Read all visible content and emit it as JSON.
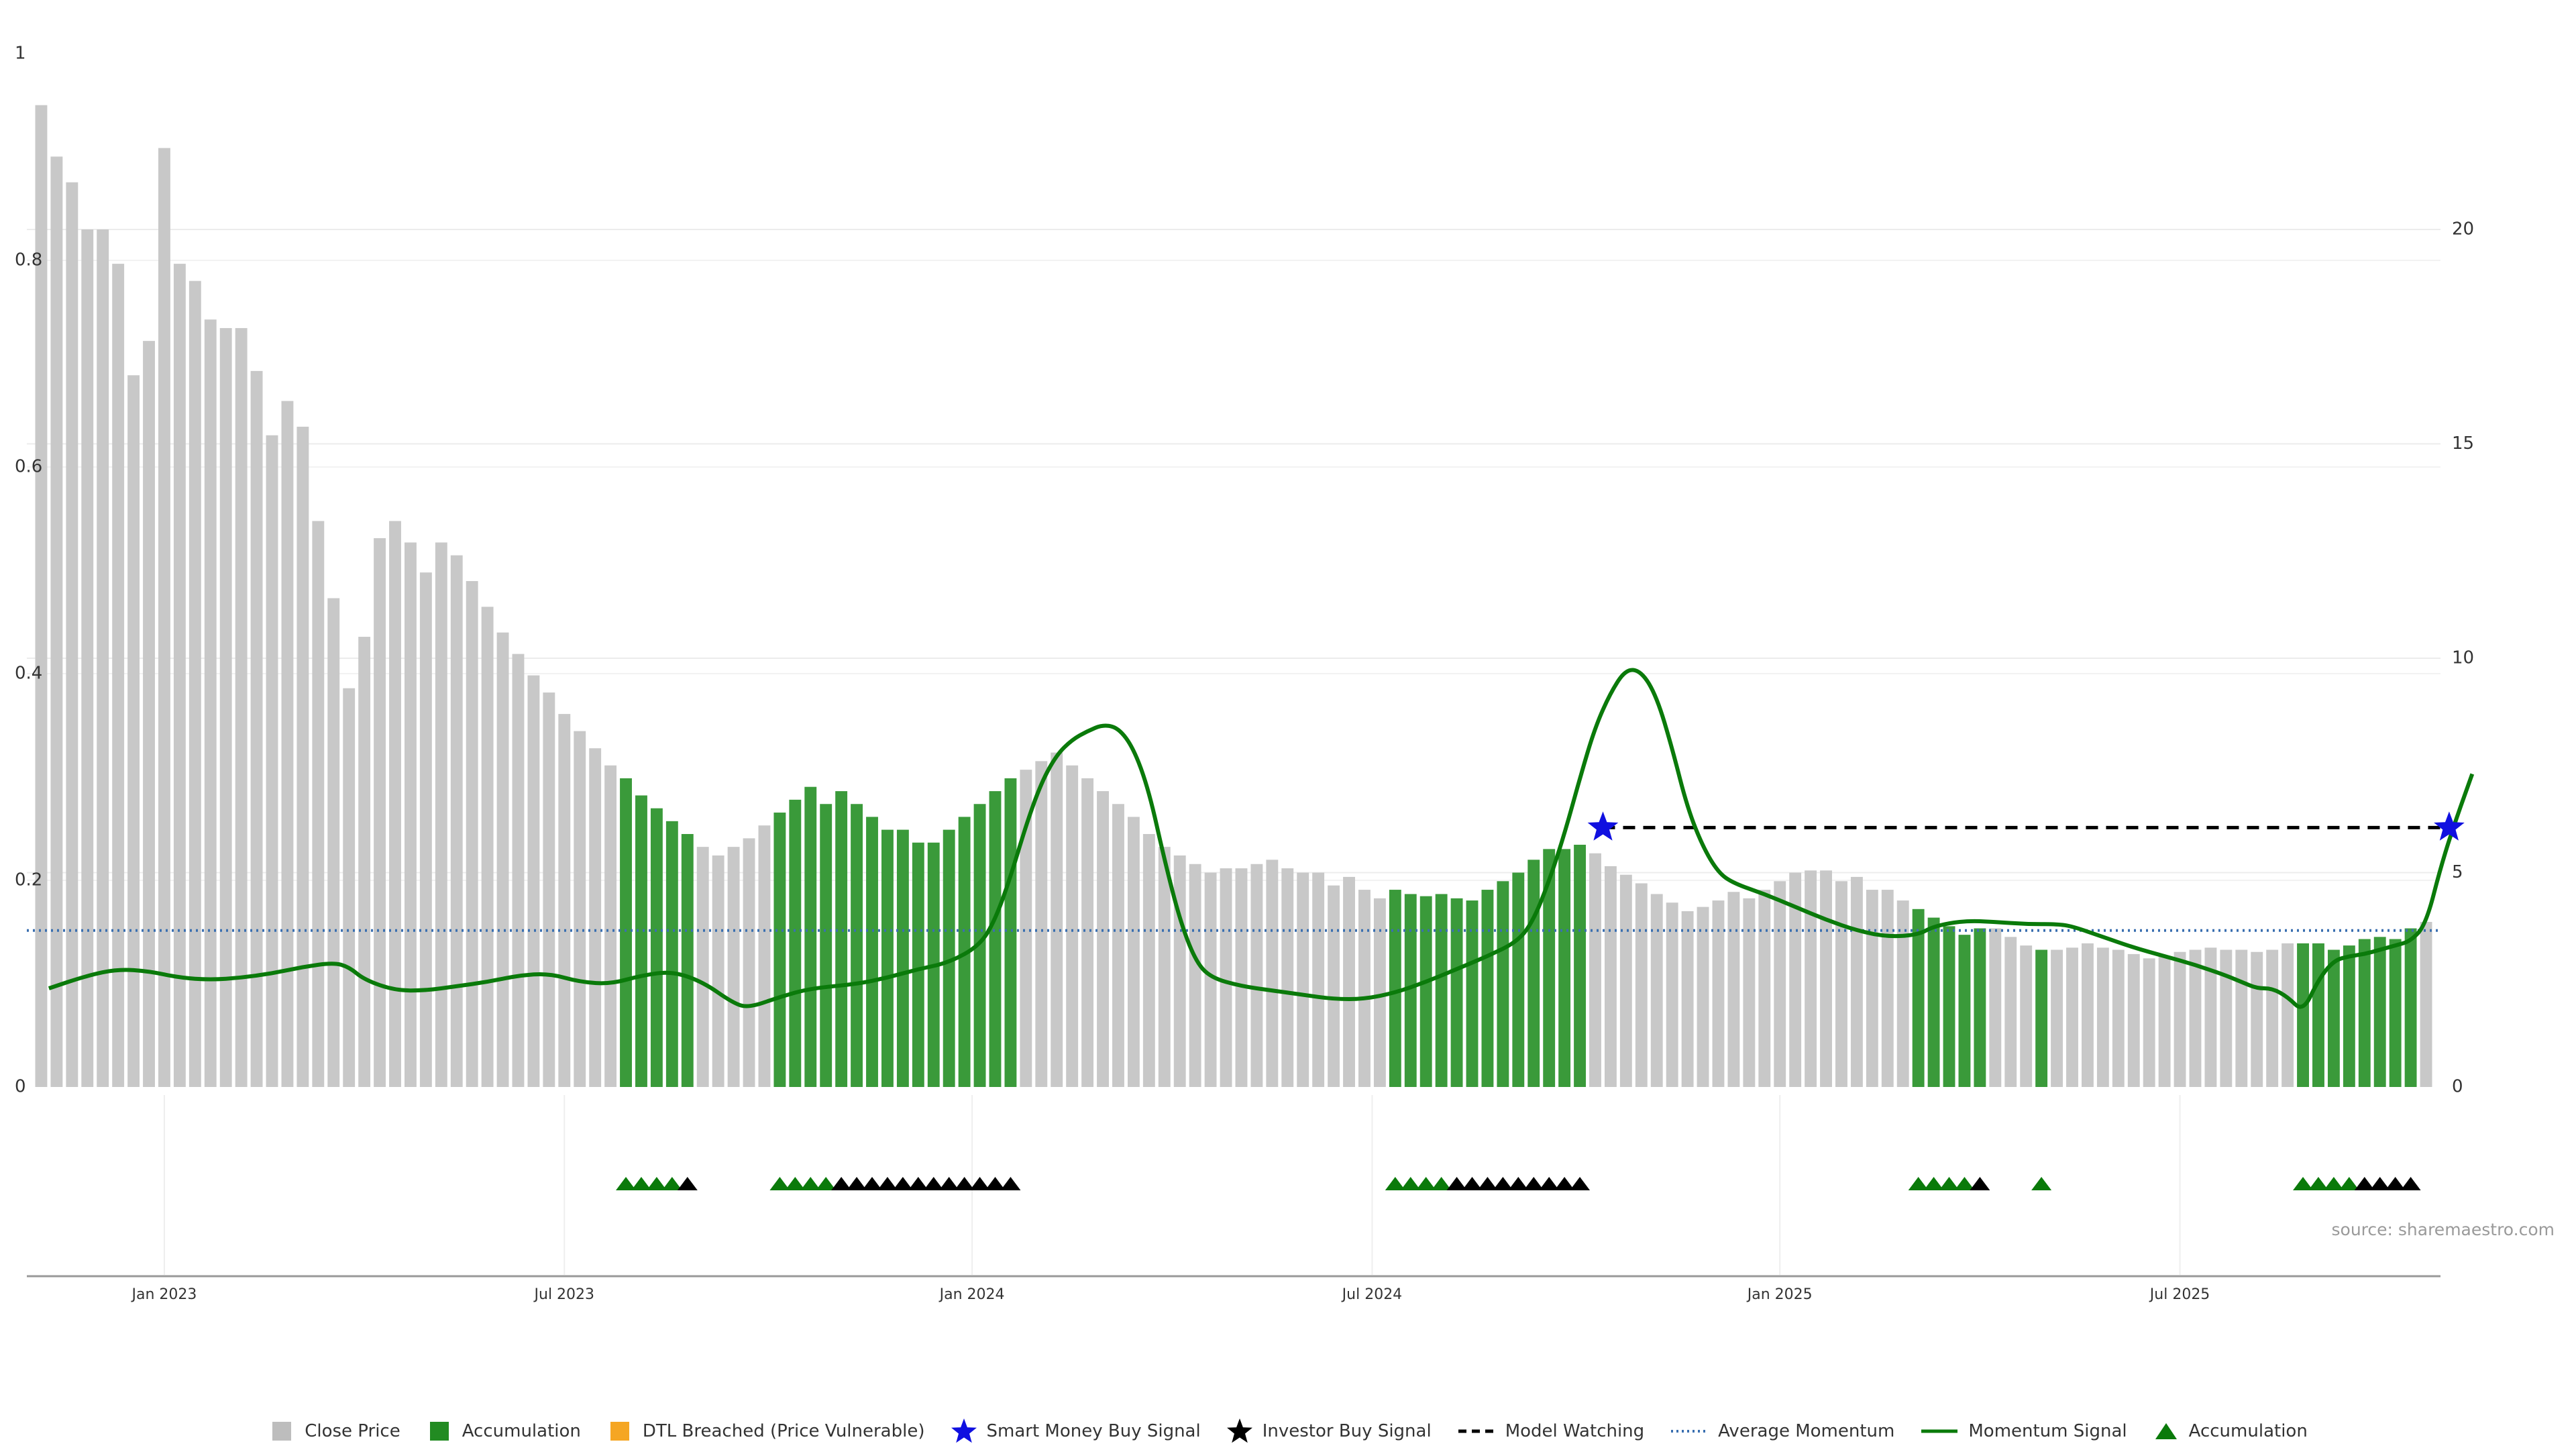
{
  "chart_data": {
    "type": "bar",
    "title": "",
    "xlabel": "",
    "ylabel": "",
    "left_axis": {
      "ticks": [
        "0",
        "0.2",
        "0.4",
        "0.6",
        "0.8",
        "1"
      ],
      "ylim": [
        0,
        1
      ]
    },
    "right_axis": {
      "ticks": [
        "0",
        "5",
        "10",
        "15",
        "20"
      ],
      "ylim": [
        0,
        24.1
      ]
    },
    "x_ticks": [
      {
        "label": "Jan 2023",
        "week": 8
      },
      {
        "label": "Jul 2023",
        "week": 34
      },
      {
        "label": "Jan 2024",
        "week": 60.5
      },
      {
        "label": "Jul 2024",
        "week": 86.5
      },
      {
        "label": "Jan 2025",
        "week": 113
      },
      {
        "label": "Jul 2025",
        "week": 139
      }
    ],
    "grid": true,
    "legend_position": "bottom-center",
    "bars": {
      "series_name": "Close Price",
      "close": [
        22.9,
        21.7,
        21.1,
        20.0,
        20.0,
        19.2,
        16.6,
        17.4,
        21.9,
        19.2,
        18.8,
        17.9,
        17.7,
        17.7,
        16.7,
        15.2,
        16.0,
        15.4,
        13.2,
        11.4,
        9.3,
        10.5,
        12.8,
        13.2,
        12.7,
        12.0,
        12.7,
        12.4,
        11.8,
        11.2,
        10.6,
        10.1,
        9.6,
        9.2,
        8.7,
        8.3,
        7.9,
        7.5,
        7.2,
        6.8,
        6.5,
        6.2,
        5.9,
        5.6,
        5.4,
        5.6,
        5.8,
        6.1,
        6.4,
        6.7,
        7.0,
        6.6,
        6.9,
        6.6,
        6.3,
        6.0,
        6.0,
        5.7,
        5.7,
        6.0,
        6.3,
        6.6,
        6.9,
        7.2,
        7.4,
        7.6,
        7.8,
        7.5,
        7.2,
        6.9,
        6.6,
        6.3,
        5.9,
        5.6,
        5.4,
        5.2,
        5.0,
        5.1,
        5.1,
        5.2,
        5.3,
        5.1,
        5.0,
        5.0,
        4.7,
        4.9,
        4.6,
        4.4,
        4.6,
        4.5,
        4.45,
        4.5,
        4.4,
        4.35,
        4.6,
        4.8,
        5.0,
        5.3,
        5.55,
        5.55,
        5.65,
        5.45,
        5.15,
        4.95,
        4.75,
        4.5,
        4.3,
        4.1,
        4.2,
        4.35,
        4.55,
        4.4,
        4.6,
        4.8,
        5.0,
        5.05,
        5.05,
        4.8,
        4.9,
        4.6,
        4.6,
        4.35,
        4.15,
        3.95,
        3.75,
        3.55,
        3.7,
        3.7,
        3.5,
        3.3,
        3.2,
        3.2,
        3.25,
        3.35,
        3.25,
        3.2,
        3.1,
        3.0,
        3.05,
        3.15,
        3.2,
        3.25,
        3.2,
        3.2,
        3.15,
        3.2,
        3.35,
        3.35,
        3.35,
        3.2,
        3.3,
        3.45,
        3.5,
        3.45,
        3.7,
        3.85
      ],
      "accumulation_weeks": [
        38,
        39,
        40,
        41,
        42,
        48,
        49,
        50,
        51,
        52,
        53,
        54,
        55,
        56,
        57,
        58,
        59,
        60,
        61,
        62,
        63,
        88,
        89,
        90,
        91,
        92,
        93,
        94,
        95,
        96,
        97,
        98,
        99,
        100,
        122,
        123,
        124,
        125,
        126,
        130,
        147,
        148,
        149,
        150,
        151,
        152,
        153,
        154
      ]
    },
    "momentum_signal": {
      "name": "Momentum Signal",
      "points": [
        [
          0.5,
          2.3
        ],
        [
          3,
          2.6
        ],
        [
          5,
          2.75
        ],
        [
          7,
          2.7
        ],
        [
          9,
          2.55
        ],
        [
          11,
          2.5
        ],
        [
          13,
          2.55
        ],
        [
          15,
          2.65
        ],
        [
          17,
          2.8
        ],
        [
          19,
          2.9
        ],
        [
          20,
          2.8
        ],
        [
          21,
          2.5
        ],
        [
          23,
          2.25
        ],
        [
          25,
          2.25
        ],
        [
          27,
          2.35
        ],
        [
          29,
          2.45
        ],
        [
          31,
          2.6
        ],
        [
          33,
          2.65
        ],
        [
          35,
          2.45
        ],
        [
          37,
          2.4
        ],
        [
          39,
          2.6
        ],
        [
          41,
          2.7
        ],
        [
          43,
          2.45
        ],
        [
          45,
          1.95
        ],
        [
          46,
          1.85
        ],
        [
          48,
          2.1
        ],
        [
          50,
          2.3
        ],
        [
          53,
          2.4
        ],
        [
          55,
          2.55
        ],
        [
          57,
          2.75
        ],
        [
          59,
          2.9
        ],
        [
          61,
          3.3
        ],
        [
          62,
          3.9
        ],
        [
          63,
          4.9
        ],
        [
          64,
          6.1
        ],
        [
          65,
          7.1
        ],
        [
          66,
          7.75
        ],
        [
          67,
          8.1
        ],
        [
          68,
          8.3
        ],
        [
          69,
          8.45
        ],
        [
          70,
          8.38
        ],
        [
          71,
          7.9
        ],
        [
          72,
          6.9
        ],
        [
          73,
          5.3
        ],
        [
          74,
          3.9
        ],
        [
          75,
          2.95
        ],
        [
          76,
          2.55
        ],
        [
          78,
          2.35
        ],
        [
          80,
          2.25
        ],
        [
          82,
          2.15
        ],
        [
          84,
          2.05
        ],
        [
          86,
          2.05
        ],
        [
          88,
          2.2
        ],
        [
          90,
          2.45
        ],
        [
          92,
          2.75
        ],
        [
          94,
          3.05
        ],
        [
          96,
          3.4
        ],
        [
          97,
          3.9
        ],
        [
          98,
          4.8
        ],
        [
          99,
          5.9
        ],
        [
          100,
          7.2
        ],
        [
          101,
          8.4
        ],
        [
          102,
          9.2
        ],
        [
          103,
          9.75
        ],
        [
          104,
          9.7
        ],
        [
          105,
          9.1
        ],
        [
          106,
          7.9
        ],
        [
          107,
          6.5
        ],
        [
          108,
          5.6
        ],
        [
          109,
          5.0
        ],
        [
          110,
          4.75
        ],
        [
          112,
          4.5
        ],
        [
          114,
          4.2
        ],
        [
          116,
          3.9
        ],
        [
          118,
          3.65
        ],
        [
          120,
          3.5
        ],
        [
          122,
          3.55
        ],
        [
          123,
          3.75
        ],
        [
          125,
          3.88
        ],
        [
          127,
          3.85
        ],
        [
          129,
          3.8
        ],
        [
          131,
          3.8
        ],
        [
          132,
          3.75
        ],
        [
          134,
          3.5
        ],
        [
          136,
          3.25
        ],
        [
          138,
          3.05
        ],
        [
          140,
          2.85
        ],
        [
          142,
          2.6
        ],
        [
          143,
          2.45
        ],
        [
          144,
          2.3
        ],
        [
          145,
          2.3
        ],
        [
          146,
          2.1
        ],
        [
          147,
          1.75
        ],
        [
          148,
          2.5
        ],
        [
          149,
          2.95
        ],
        [
          150,
          3.05
        ],
        [
          151,
          3.1
        ],
        [
          152,
          3.2
        ],
        [
          153,
          3.3
        ],
        [
          154,
          3.4
        ],
        [
          155,
          3.8
        ],
        [
          156,
          5.2
        ],
        [
          157,
          6.3
        ],
        [
          158,
          7.3
        ]
      ]
    },
    "average_momentum": {
      "name": "Average Momentum",
      "value": 3.65
    },
    "model_watching": {
      "name": "Model Watching",
      "from_week": 101.5,
      "to_week": 156.5,
      "value": 6.05
    },
    "smart_money_signals": [
      {
        "week": 101.5,
        "value": 6.05
      },
      {
        "week": 156.5,
        "value": 6.05
      }
    ],
    "signal_markers": {
      "accumulation_weeks": [
        38,
        39,
        40,
        41,
        48,
        49,
        50,
        51,
        88,
        89,
        90,
        91,
        122,
        123,
        124,
        125,
        130,
        147,
        148,
        149,
        150
      ],
      "investor_weeks": [
        42,
        52,
        53,
        54,
        55,
        56,
        57,
        58,
        59,
        60,
        61,
        62,
        63,
        92,
        93,
        94,
        95,
        96,
        97,
        98,
        99,
        100,
        126,
        151,
        152,
        153,
        154
      ]
    },
    "legend": [
      {
        "label": "Close Price",
        "kind": "square",
        "color": "#bdbdbd"
      },
      {
        "label": "Accumulation",
        "kind": "square",
        "color": "#228B22"
      },
      {
        "label": "DTL Breached (Price Vulnerable)",
        "kind": "square",
        "color": "#f5a623"
      },
      {
        "label": "Smart Money Buy Signal",
        "kind": "star",
        "color": "#1010e0"
      },
      {
        "label": "Investor Buy Signal",
        "kind": "star",
        "color": "#000000"
      },
      {
        "label": "Model Watching",
        "kind": "dash",
        "color": "#000000"
      },
      {
        "label": "Average Momentum",
        "kind": "dot",
        "color": "#3a6fb0"
      },
      {
        "label": "Momentum Signal",
        "kind": "line",
        "color": "#0a7a0a"
      },
      {
        "label": "Accumulation",
        "kind": "triangle",
        "color": "#0a7a0a"
      }
    ],
    "colors": {
      "close": "#c8c8c8",
      "accumulation": "#3a9a3a",
      "momentum": "#0a7a0a",
      "average": "#3a6fb0",
      "smart_money": "#1010e0",
      "investor": "#000000",
      "triangle": "#0a7a0a"
    }
  },
  "source_note": "source: sharemaestro.com"
}
